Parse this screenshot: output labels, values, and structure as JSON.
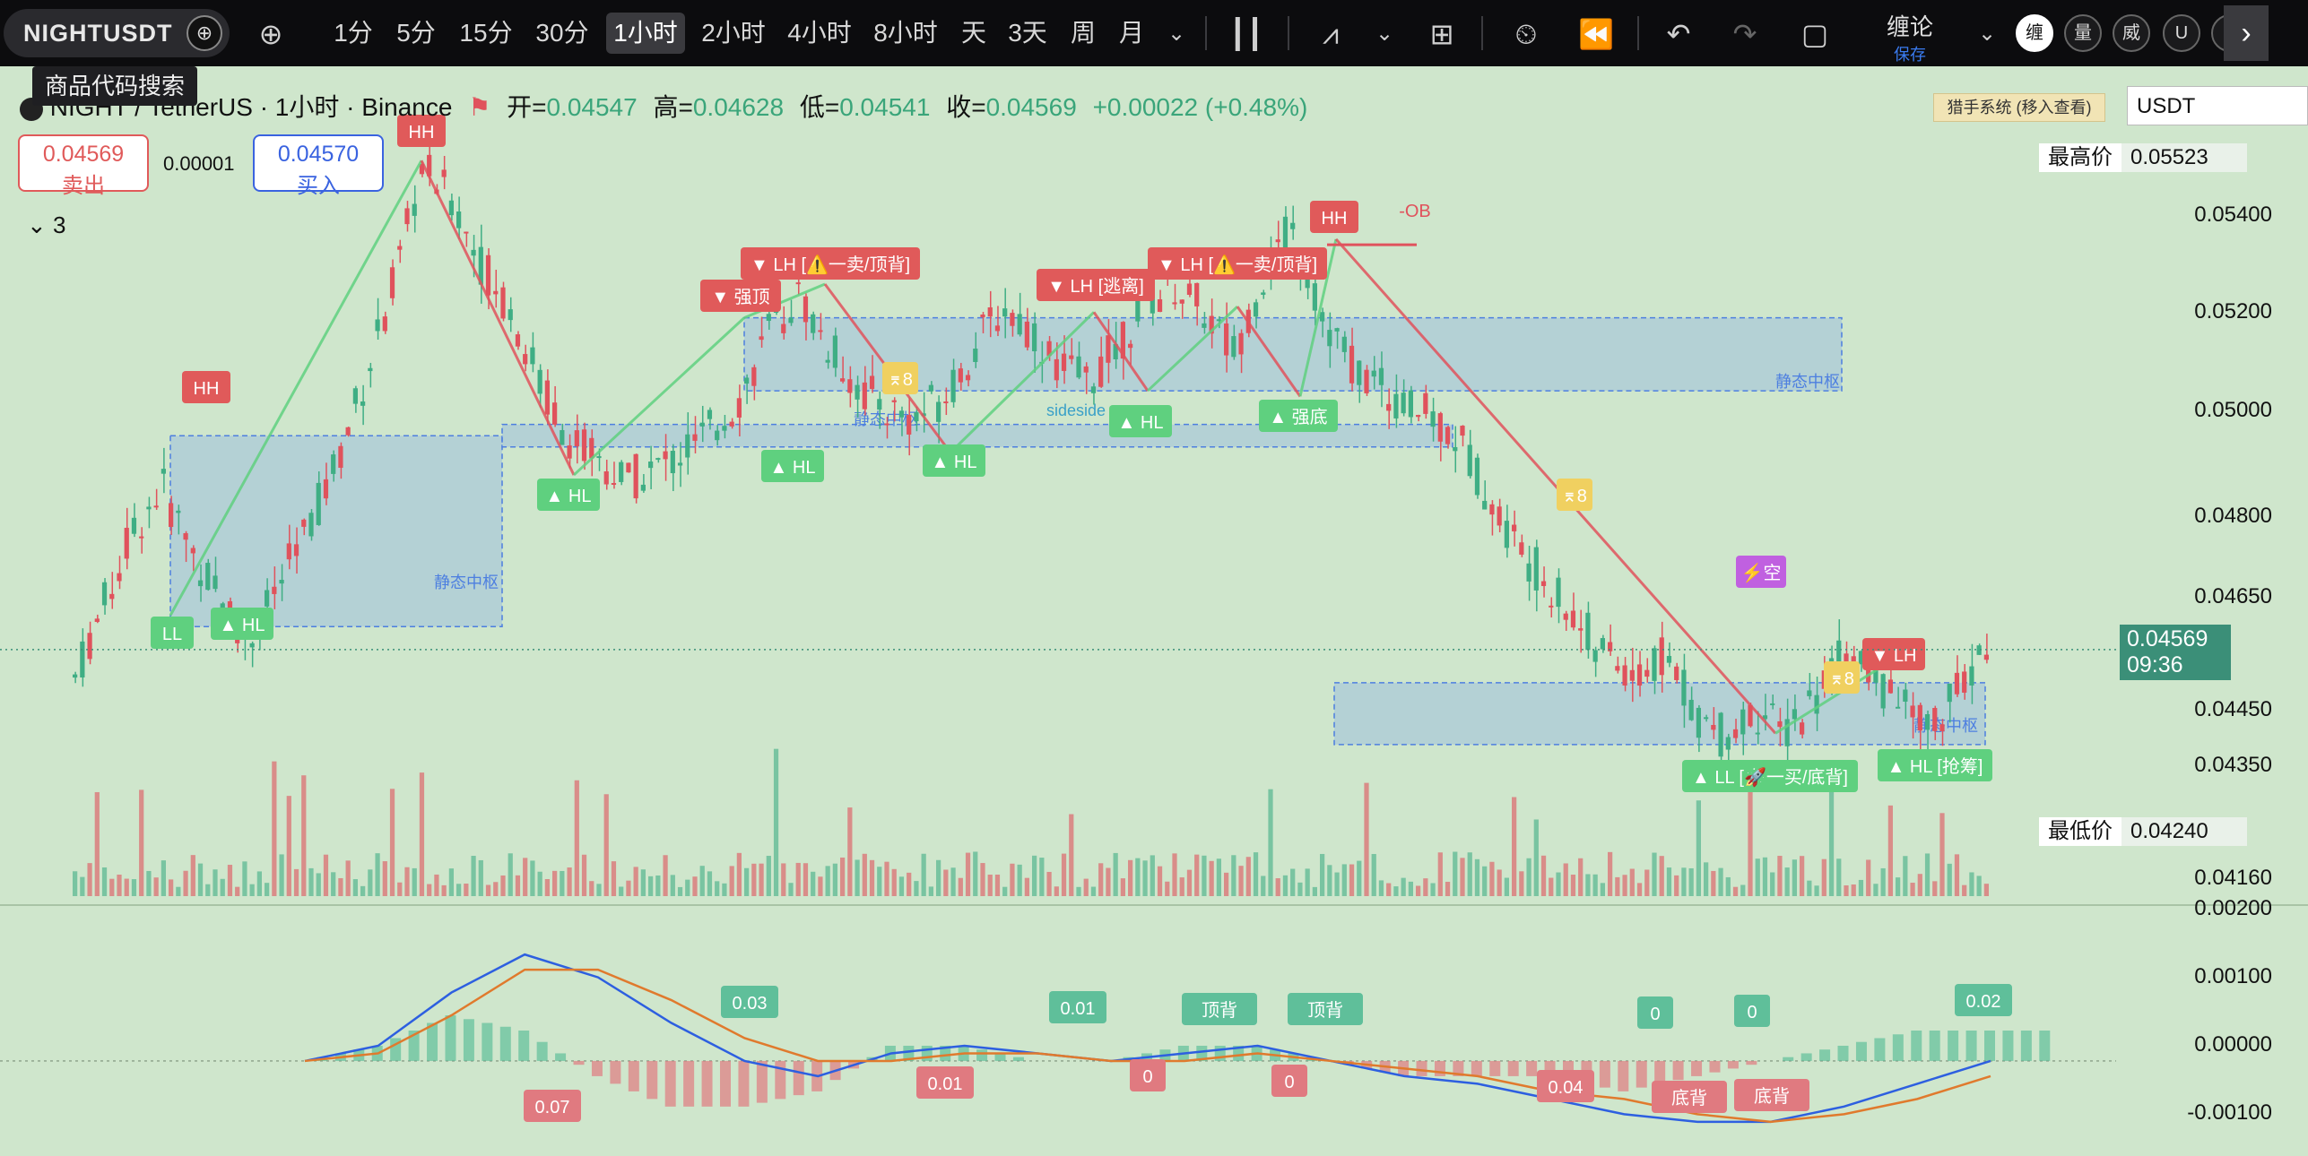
{
  "toolbar": {
    "symbol": "NIGHTUSDT",
    "timeframes": [
      "1分",
      "5分",
      "15分",
      "30分",
      "1小时",
      "2小时",
      "4小时",
      "8小时",
      "天",
      "3天",
      "周",
      "月"
    ],
    "active_timeframe": "1小时",
    "indicator_name": "缠论",
    "indicator_save": "保存",
    "circle_buttons": [
      "缠",
      "量",
      "威",
      "U",
      "V"
    ]
  },
  "tooltip": "商品代码搜索",
  "legend": {
    "title": "NIGHT / TetherUS · 1小时 · Binance",
    "open_label": "开=",
    "open": "0.04547",
    "high_label": "高=",
    "high": "0.04628",
    "low_label": "低=",
    "low": "0.04541",
    "close_label": "收=",
    "close": "0.04569",
    "change": "+0.00022 (+0.48%)"
  },
  "trade": {
    "sell_price": "0.04569",
    "sell_label": "卖出",
    "spread": "0.00001",
    "buy_price": "0.04570",
    "buy_label": "买入"
  },
  "collapse_count": "3",
  "hunter_label": "猎手系统 (移入查看)",
  "currency_field": "USDT",
  "price_axis": {
    "high_tag": "最高价",
    "high_value": "0.05523",
    "low_tag": "最低价",
    "low_value": "0.04240",
    "current_price": "0.04569",
    "countdown": "09:36",
    "ticks": [
      "0.05400",
      "0.05200",
      "0.05000",
      "0.04800",
      "0.04650",
      "0.04450",
      "0.04350",
      "0.04160"
    ]
  },
  "macd_axis": {
    "ticks": [
      "0.00200",
      "0.00100",
      "0.00000",
      "-0.00100"
    ]
  },
  "annotations": {
    "hh": "HH",
    "ll": "LL",
    "hl": "▲ HL",
    "lh": "▼ LH",
    "strong_top": "▼ 强顶",
    "strong_bottom": "▲ 强底",
    "lh_sell": "▼ LH [⚠️一卖/顶背]",
    "lh_escape": "▼ LH [逃离]",
    "ll_buy": "▲ LL [🚀一买/底背]",
    "hl_grab": "▲ HL [抢筹]",
    "ob": "-OB",
    "static_pivot": "静态中枢",
    "empty": "⚡空",
    "b8": "⌆8",
    "sideside": "sideside"
  },
  "macd_labels": {
    "v003": "0.03",
    "v001": "0.01",
    "v007": "0.07",
    "v001b": "0.01",
    "v0": "0",
    "v004": "0.04",
    "v002": "0.02",
    "top_div": "顶背",
    "bottom_div": "底背"
  },
  "colors": {
    "up": "#3fae84",
    "down": "#e0525c",
    "background": "#cfe6cc",
    "pivot_fill": "#9fbfdc",
    "label_green": "#5fd07f",
    "label_red": "#e05a5a",
    "macd_dif": "#2d5fe0",
    "macd_dea": "#e07a2d"
  },
  "chart_data": {
    "type": "candlestick",
    "title": "NIGHT / TetherUS · 1小时 · Binance",
    "ylim": [
      0.0413,
      0.0556
    ],
    "price_path": [
      0.0452,
      0.0465,
      0.0478,
      0.0486,
      0.0475,
      0.0466,
      0.0458,
      0.0468,
      0.0478,
      0.049,
      0.0505,
      0.0522,
      0.0543,
      0.0537,
      0.0526,
      0.0518,
      0.0505,
      0.0495,
      0.0491,
      0.0487,
      0.0489,
      0.0492,
      0.0496,
      0.0502,
      0.0514,
      0.052,
      0.0511,
      0.0504,
      0.05,
      0.0498,
      0.0502,
      0.051,
      0.0518,
      0.0514,
      0.0507,
      0.0505,
      0.0511,
      0.0519,
      0.0522,
      0.0517,
      0.051,
      0.0523,
      0.0532,
      0.0517,
      0.0508,
      0.0504,
      0.05,
      0.0498,
      0.0493,
      0.0482,
      0.0474,
      0.0468,
      0.0461,
      0.0455,
      0.0452,
      0.0456,
      0.0445,
      0.0441,
      0.0446,
      0.0442,
      0.0448,
      0.0456,
      0.0452,
      0.0447,
      0.0443,
      0.0449,
      0.0457
    ],
    "macd": {
      "dif": [
        0.0,
        0.0002,
        0.0009,
        0.0014,
        0.0011,
        0.0005,
        0.0,
        -0.0002,
        0.0001,
        0.0002,
        0.0001,
        0.0,
        0.0001,
        0.0002,
        0.0,
        -0.0002,
        -0.0003,
        -0.0005,
        -0.0007,
        -0.0008,
        -0.0008,
        -0.0006,
        -0.0003,
        0.0
      ],
      "dea": [
        0.0,
        0.0001,
        0.0006,
        0.0012,
        0.0012,
        0.0008,
        0.0003,
        0.0,
        0.0,
        0.0001,
        0.0001,
        0.0,
        0.0,
        0.0001,
        0.0,
        -0.0001,
        -0.0002,
        -0.0004,
        -0.0005,
        -0.0007,
        -0.0008,
        -0.0007,
        -0.0005,
        -0.0002
      ],
      "ylim": [
        -0.00125,
        0.00205
      ]
    }
  }
}
